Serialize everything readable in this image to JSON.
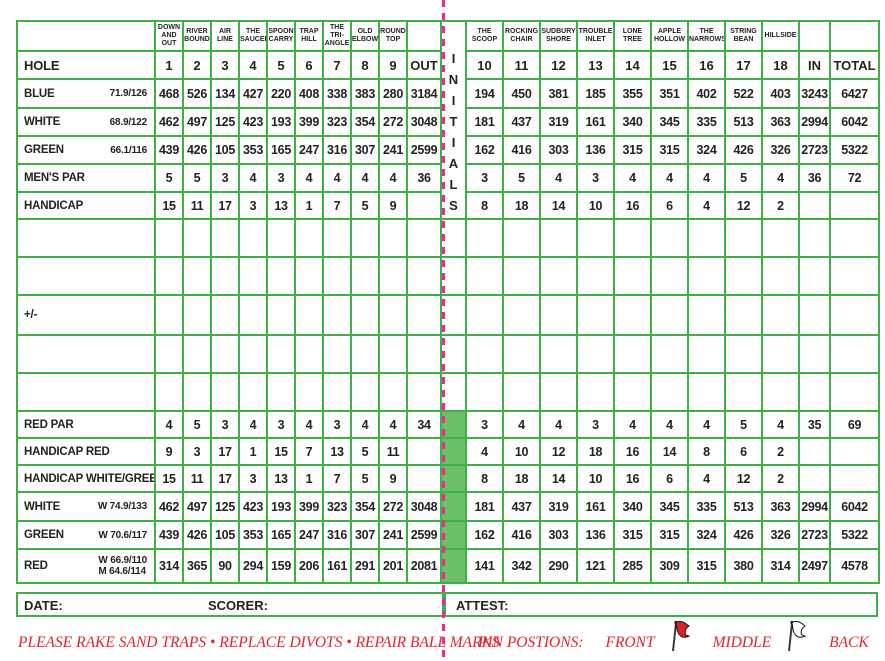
{
  "colors": {
    "border_green": "#3fb049",
    "fill_green": "#6abf69",
    "blue": "#17549a",
    "green": "#44b14a",
    "dark_red": "#a32035",
    "red": "#e8222d",
    "gold": "#e5a223",
    "black": "#262223",
    "fold_pink": "#ec2a90"
  },
  "front_names": [
    "DOWN AND OUT",
    "RIVER BOUND",
    "AIR LINE",
    "THE SAUCER",
    "SPOON CARRY",
    "TRAP HILL",
    "THE TRI-ANGLE",
    "OLD ELBOW",
    "ROUND TOP"
  ],
  "back_names": [
    "THE SCOOP",
    "ROCKING CHAIR",
    "SUDBURY SHORE",
    "TROUBLE INLET",
    "LONE TREE",
    "APPLE HOLLOW",
    "THE NARROWS",
    "STRING BEAN",
    "HILLSIDE"
  ],
  "initials": {
    "letters": [
      "I",
      "N",
      "I",
      "T",
      "I",
      "A",
      "L",
      "S"
    ]
  },
  "rows": [
    {
      "key": "hole",
      "label": "HOLE",
      "color": "black",
      "front": [
        "1",
        "2",
        "3",
        "4",
        "5",
        "6",
        "7",
        "8",
        "9"
      ],
      "out": "OUT",
      "back": [
        "10",
        "11",
        "12",
        "13",
        "14",
        "15",
        "16",
        "17",
        "18"
      ],
      "inn": "IN",
      "total": "TOTAL"
    },
    {
      "key": "blue",
      "label": "BLUE",
      "rating": "71.9/126",
      "color": "blue",
      "front": [
        "468",
        "526",
        "134",
        "427",
        "220",
        "408",
        "338",
        "383",
        "280"
      ],
      "out": "3184",
      "back": [
        "194",
        "450",
        "381",
        "185",
        "355",
        "351",
        "402",
        "522",
        "403"
      ],
      "inn": "3243",
      "total": "6427"
    },
    {
      "key": "white",
      "label": "WHITE",
      "rating": "68.9/122",
      "color": "black",
      "front": [
        "462",
        "497",
        "125",
        "423",
        "193",
        "399",
        "323",
        "354",
        "272"
      ],
      "out": "3048",
      "back": [
        "181",
        "437",
        "319",
        "161",
        "340",
        "345",
        "335",
        "513",
        "363"
      ],
      "inn": "2994",
      "total": "6042"
    },
    {
      "key": "green",
      "label": "GREEN",
      "rating": "66.1/116",
      "color": "green",
      "front": [
        "439",
        "426",
        "105",
        "353",
        "165",
        "247",
        "316",
        "307",
        "241"
      ],
      "out": "2599",
      "back": [
        "162",
        "416",
        "303",
        "136",
        "315",
        "315",
        "324",
        "426",
        "326"
      ],
      "inn": "2723",
      "total": "5322"
    },
    {
      "key": "mens-par",
      "label": "MEN'S PAR",
      "color": "darkred",
      "front": [
        "5",
        "5",
        "3",
        "4",
        "3",
        "4",
        "4",
        "4",
        "4"
      ],
      "out": "36",
      "back": [
        "3",
        "5",
        "4",
        "3",
        "4",
        "4",
        "4",
        "5",
        "4"
      ],
      "inn": "36",
      "total": "72"
    },
    {
      "key": "handicap",
      "label": "HANDICAP",
      "color": "gold",
      "front": [
        "15",
        "11",
        "17",
        "3",
        "13",
        "1",
        "7",
        "5",
        "9"
      ],
      "out": "",
      "back": [
        "8",
        "18",
        "14",
        "10",
        "16",
        "6",
        "4",
        "12",
        "2"
      ],
      "inn": "",
      "total": ""
    },
    {
      "key": "blank-1",
      "label": "",
      "color": "black",
      "init": "blank",
      "writable": true
    },
    {
      "key": "blank-2",
      "label": "",
      "color": "black",
      "init": "blank",
      "writable": true
    },
    {
      "key": "plus-minus",
      "label": "+/-",
      "color": "green",
      "init": "blank",
      "writable": true
    },
    {
      "key": "blank-3",
      "label": "",
      "color": "black",
      "init": "blank",
      "writable": true
    },
    {
      "key": "blank-4",
      "label": "",
      "color": "black",
      "init": "blank",
      "writable": true
    },
    {
      "key": "red-par",
      "label": "RED PAR",
      "color": "red",
      "front": [
        "4",
        "5",
        "3",
        "4",
        "3",
        "4",
        "3",
        "4",
        "4"
      ],
      "out": "34",
      "back": [
        "3",
        "4",
        "4",
        "3",
        "4",
        "4",
        "4",
        "5",
        "4"
      ],
      "inn": "35",
      "total": "69",
      "init": "green"
    },
    {
      "key": "handicap-red",
      "label": "HANDICAP RED",
      "color": "gold",
      "front": [
        "9",
        "3",
        "17",
        "1",
        "15",
        "7",
        "13",
        "5",
        "11"
      ],
      "out": "",
      "back": [
        "4",
        "10",
        "12",
        "18",
        "16",
        "14",
        "8",
        "6",
        "2"
      ],
      "inn": "",
      "total": "",
      "init": "green"
    },
    {
      "key": "handicap-white-green",
      "label": "HANDICAP WHITE/GREEN",
      "color": "black",
      "front": [
        "15",
        "11",
        "17",
        "3",
        "13",
        "1",
        "7",
        "5",
        "9"
      ],
      "out": "",
      "back": [
        "8",
        "18",
        "14",
        "10",
        "16",
        "6",
        "4",
        "12",
        "2"
      ],
      "inn": "",
      "total": "",
      "init": "green"
    },
    {
      "key": "white-w",
      "label": "WHITE",
      "rating": "W 74.9/133",
      "color": "black",
      "front": [
        "462",
        "497",
        "125",
        "423",
        "193",
        "399",
        "323",
        "354",
        "272"
      ],
      "out": "3048",
      "back": [
        "181",
        "437",
        "319",
        "161",
        "340",
        "345",
        "335",
        "513",
        "363"
      ],
      "inn": "2994",
      "total": "6042",
      "init": "green"
    },
    {
      "key": "green-w",
      "label": "GREEN",
      "rating": "W 70.6/117",
      "color": "green",
      "front": [
        "439",
        "426",
        "105",
        "353",
        "165",
        "247",
        "316",
        "307",
        "241"
      ],
      "out": "2599",
      "back": [
        "162",
        "416",
        "303",
        "136",
        "315",
        "315",
        "324",
        "426",
        "326"
      ],
      "inn": "2723",
      "total": "5322",
      "init": "green"
    },
    {
      "key": "red",
      "label": "RED",
      "rating": "W 66.9/110\nM 64.6/114",
      "color": "red",
      "front": [
        "314",
        "365",
        "90",
        "294",
        "159",
        "206",
        "161",
        "291",
        "201"
      ],
      "out": "2081",
      "back": [
        "141",
        "342",
        "290",
        "121",
        "285",
        "309",
        "315",
        "380",
        "314"
      ],
      "inn": "2497",
      "total": "4578",
      "init": "green"
    }
  ],
  "signature": {
    "date_label": "DATE:",
    "scorer_label": "SCORER:",
    "attest_label": "ATTEST:"
  },
  "footer": {
    "etiquette": "PLEASE RAKE SAND TRAPS • REPLACE DIVOTS • REPAIR BALL MARKS",
    "pin_label": "PIN POSTIONS:",
    "front_label": "FRONT",
    "middle_label": "MIDDLE",
    "back_label": "BACK"
  }
}
